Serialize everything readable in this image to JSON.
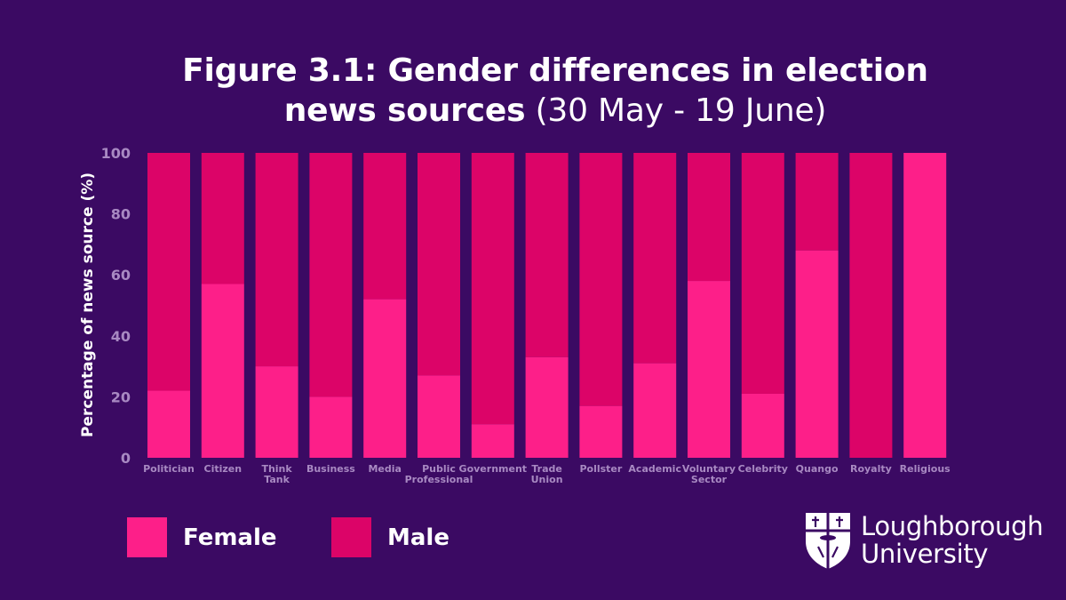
{
  "title": {
    "line1": "Figure 3.1: Gender differences in election",
    "line2_bold": "news sources",
    "line2_light": "(30 May - 19 June)"
  },
  "colors": {
    "background": "#3b0a63",
    "female": "#fd1f89",
    "male": "#dc0468",
    "axis_text": "#a889c2"
  },
  "chart_data": {
    "type": "bar",
    "stacked": true,
    "ylabel": "Percentage of news source (%)",
    "xlabel": "",
    "ylim": [
      0,
      100
    ],
    "yticks": [
      0,
      20,
      40,
      60,
      80,
      100
    ],
    "categories": [
      [
        "Politician"
      ],
      [
        "Citizen"
      ],
      [
        "Think",
        "Tank"
      ],
      [
        "Business"
      ],
      [
        "Media"
      ],
      [
        "Public",
        "Professional"
      ],
      [
        "Government"
      ],
      [
        "Trade",
        "Union"
      ],
      [
        "Pollster"
      ],
      [
        "Academic"
      ],
      [
        "Voluntary",
        "Sector"
      ],
      [
        "Celebrity"
      ],
      [
        "Quango"
      ],
      [
        "Royalty"
      ],
      [
        "Religious"
      ]
    ],
    "series": [
      {
        "name": "Female",
        "values": [
          22,
          57,
          30,
          20,
          52,
          27,
          11,
          33,
          17,
          31,
          58,
          21,
          68,
          0,
          100
        ]
      },
      {
        "name": "Male",
        "values": [
          78,
          43,
          70,
          80,
          48,
          73,
          89,
          67,
          83,
          69,
          42,
          79,
          32,
          100,
          0
        ]
      }
    ]
  },
  "legend": {
    "female_label": "Female",
    "male_label": "Male"
  },
  "logo": {
    "line1": "Loughborough",
    "line2": "University"
  }
}
